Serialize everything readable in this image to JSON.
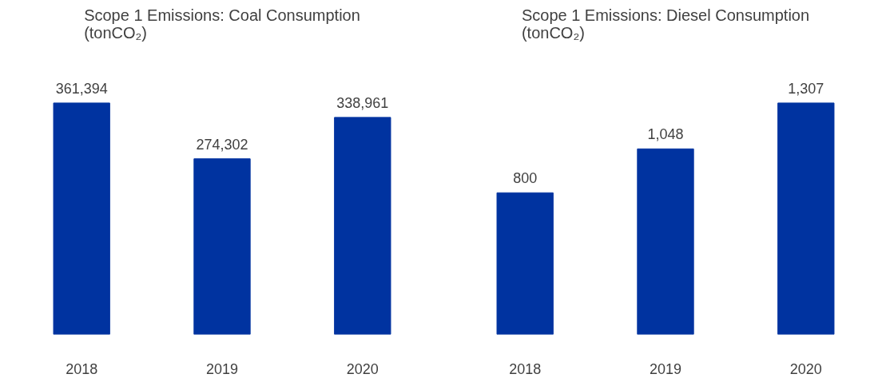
{
  "chart_data": [
    {
      "type": "bar",
      "title": "Scope 1 Emissions: Coal Consumption\n(tonCO₂)",
      "categories": [
        "2018",
        "2019",
        "2020"
      ],
      "values": [
        361394,
        274302,
        338961
      ],
      "value_labels": [
        "361,394",
        "274,302",
        "338,961"
      ],
      "color": "#0033a0"
    },
    {
      "type": "bar",
      "title": "Scope 1 Emissions: Diesel Consumption\n(tonCO₂)",
      "categories": [
        "2018",
        "2019",
        "2020"
      ],
      "values": [
        800,
        1048,
        1307
      ],
      "value_labels": [
        "800",
        "1,048",
        "1,307"
      ],
      "color": "#0033a0"
    }
  ]
}
